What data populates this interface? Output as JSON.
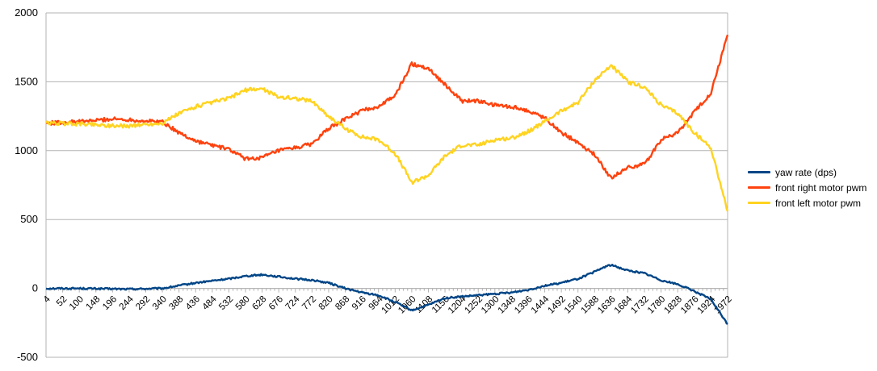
{
  "chart_data": {
    "type": "line",
    "title": "",
    "xlabel": "",
    "ylabel": "",
    "xlim": [
      4,
      1972
    ],
    "ylim": [
      -500,
      2000
    ],
    "y_ticks": [
      "2000",
      "1500",
      "1000",
      "500",
      "0",
      "-500"
    ],
    "x_ticks": [
      "4",
      "52",
      "100",
      "148",
      "196",
      "244",
      "292",
      "340",
      "388",
      "436",
      "484",
      "532",
      "580",
      "628",
      "676",
      "724",
      "772",
      "820",
      "868",
      "916",
      "964",
      "1012",
      "1060",
      "1108",
      "1156",
      "1204",
      "1252",
      "1300",
      "1348",
      "1396",
      "1444",
      "1492",
      "1540",
      "1588",
      "1636",
      "1684",
      "1732",
      "1780",
      "1828",
      "1876",
      "1924",
      "1972"
    ],
    "grid": "horizontal",
    "legend_position": "right",
    "series": [
      {
        "name": "yaw rate (dps)",
        "color": "#004586",
        "x": [
          4,
          100,
          244,
          340,
          388,
          436,
          532,
          580,
          628,
          724,
          772,
          820,
          868,
          916,
          964,
          1012,
          1060,
          1108,
          1156,
          1204,
          1252,
          1300,
          1348,
          1396,
          1444,
          1492,
          1540,
          1588,
          1620,
          1636,
          1684,
          1732,
          1780,
          1828,
          1876,
          1924,
          1972
        ],
        "y": [
          0,
          0,
          -5,
          0,
          20,
          40,
          70,
          90,
          100,
          70,
          60,
          40,
          0,
          -30,
          -50,
          -100,
          -160,
          -120,
          -70,
          -60,
          -50,
          -40,
          -30,
          -10,
          20,
          40,
          70,
          120,
          160,
          170,
          130,
          110,
          60,
          30,
          -20,
          -80,
          -260
        ]
      },
      {
        "name": "front right motor pwm",
        "color": "#ff420e",
        "x": [
          4,
          100,
          148,
          196,
          244,
          292,
          340,
          388,
          436,
          484,
          532,
          580,
          628,
          676,
          724,
          772,
          820,
          868,
          916,
          964,
          1012,
          1060,
          1108,
          1156,
          1204,
          1252,
          1300,
          1348,
          1396,
          1444,
          1492,
          1540,
          1588,
          1636,
          1684,
          1732,
          1780,
          1828,
          1876,
          1924,
          1972
        ],
        "y": [
          1200,
          1210,
          1220,
          1230,
          1225,
          1215,
          1210,
          1130,
          1070,
          1040,
          1010,
          940,
          950,
          1000,
          1020,
          1050,
          1160,
          1230,
          1290,
          1320,
          1400,
          1630,
          1600,
          1480,
          1360,
          1360,
          1330,
          1320,
          1290,
          1240,
          1130,
          1060,
          970,
          800,
          880,
          900,
          1080,
          1130,
          1280,
          1420,
          1840
        ]
      },
      {
        "name": "front left motor pwm",
        "color": "#ffd320",
        "x": [
          4,
          100,
          148,
          196,
          244,
          292,
          340,
          388,
          436,
          484,
          532,
          580,
          628,
          676,
          724,
          772,
          820,
          868,
          916,
          964,
          1012,
          1060,
          1108,
          1156,
          1204,
          1252,
          1300,
          1348,
          1396,
          1444,
          1492,
          1540,
          1588,
          1636,
          1684,
          1732,
          1780,
          1828,
          1876,
          1924,
          1972
        ],
        "y": [
          1200,
          1195,
          1190,
          1180,
          1180,
          1190,
          1200,
          1270,
          1320,
          1350,
          1380,
          1440,
          1450,
          1390,
          1380,
          1360,
          1250,
          1160,
          1100,
          1080,
          980,
          770,
          820,
          960,
          1040,
          1040,
          1080,
          1090,
          1140,
          1210,
          1290,
          1350,
          1510,
          1620,
          1500,
          1460,
          1330,
          1270,
          1130,
          1020,
          560
        ]
      }
    ]
  }
}
